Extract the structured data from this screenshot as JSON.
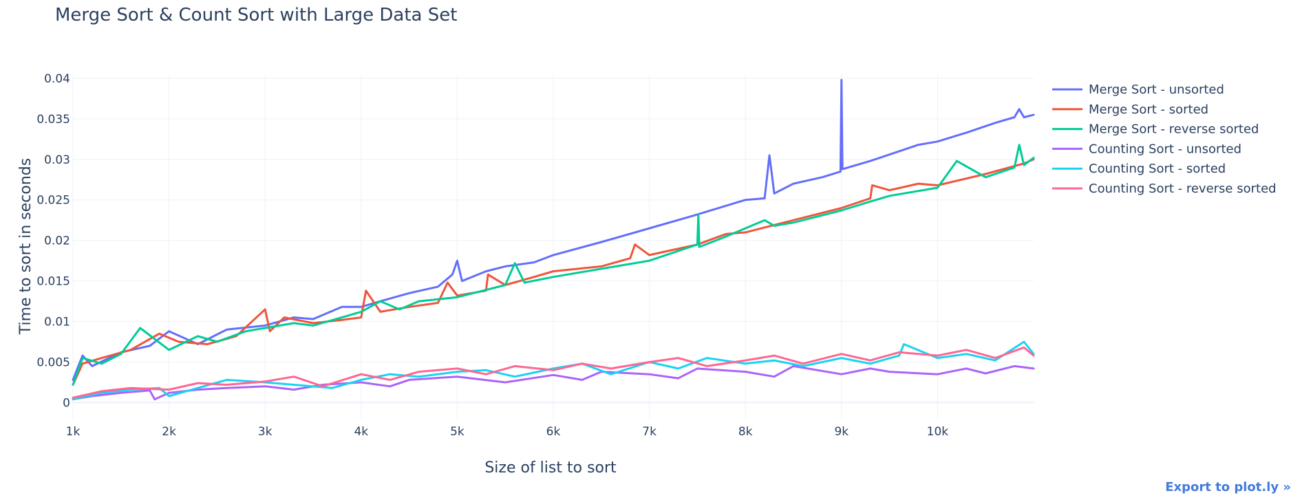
{
  "export_link": "Export to plot.ly »",
  "chart_data": {
    "type": "line",
    "title": "Merge Sort & Count Sort with Large Data Set",
    "xlabel": "Size of list to sort",
    "ylabel": "Time to sort in seconds",
    "xlim": [
      1000,
      11000
    ],
    "ylim": [
      -0.002,
      0.0405
    ],
    "xticks": [
      1000,
      2000,
      3000,
      4000,
      5000,
      6000,
      7000,
      8000,
      9000,
      10000
    ],
    "xtick_labels": [
      "1k",
      "2k",
      "3k",
      "4k",
      "5k",
      "6k",
      "7k",
      "8k",
      "9k",
      "10k"
    ],
    "yticks": [
      0,
      0.005,
      0.01,
      0.015,
      0.02,
      0.025,
      0.03,
      0.035,
      0.04
    ],
    "ytick_labels": [
      "0",
      "0.005",
      "0.01",
      "0.015",
      "0.02",
      "0.025",
      "0.03",
      "0.035",
      "0.04"
    ],
    "grid": true,
    "legend_position": "right",
    "series": [
      {
        "name": "Merge Sort - unsorted",
        "color": "#636efa",
        "x": [
          1000,
          1100,
          1200,
          1500,
          1800,
          2000,
          2300,
          2600,
          3000,
          3300,
          3500,
          3800,
          4000,
          4200,
          4500,
          4800,
          4950,
          5000,
          5050,
          5300,
          5500,
          5800,
          6000,
          6500,
          7000,
          7500,
          8000,
          8200,
          8250,
          8300,
          8500,
          8800,
          8990,
          9000,
          9010,
          9300,
          9500,
          9800,
          10000,
          10300,
          10600,
          10800,
          10850,
          10900,
          11000
        ],
        "y": [
          0.0028,
          0.0058,
          0.0045,
          0.0062,
          0.007,
          0.0088,
          0.0072,
          0.009,
          0.0095,
          0.0105,
          0.0103,
          0.0118,
          0.0118,
          0.0125,
          0.0135,
          0.0143,
          0.0158,
          0.0175,
          0.015,
          0.0162,
          0.0168,
          0.0173,
          0.0182,
          0.0198,
          0.0215,
          0.0232,
          0.025,
          0.0252,
          0.0305,
          0.0258,
          0.027,
          0.0278,
          0.0285,
          0.0398,
          0.0288,
          0.0298,
          0.0306,
          0.0318,
          0.0322,
          0.0333,
          0.0345,
          0.0352,
          0.0362,
          0.0352,
          0.0355
        ]
      },
      {
        "name": "Merge Sort - sorted",
        "color": "#ef553b",
        "x": [
          1000,
          1100,
          1300,
          1600,
          1900,
          2100,
          2400,
          2700,
          3000,
          3050,
          3200,
          3500,
          3800,
          4000,
          4050,
          4200,
          4500,
          4800,
          4900,
          5000,
          5300,
          5320,
          5500,
          5800,
          6000,
          6500,
          6800,
          6850,
          7000,
          7500,
          7800,
          8000,
          8500,
          9000,
          9300,
          9320,
          9500,
          9800,
          10000,
          10500,
          10900,
          11000
        ],
        "y": [
          0.0022,
          0.0048,
          0.0055,
          0.0065,
          0.0085,
          0.0075,
          0.0072,
          0.0082,
          0.0115,
          0.0088,
          0.0105,
          0.0098,
          0.0102,
          0.0105,
          0.0138,
          0.0112,
          0.0118,
          0.0123,
          0.0148,
          0.0132,
          0.0138,
          0.0158,
          0.0145,
          0.0155,
          0.0162,
          0.0168,
          0.0178,
          0.0195,
          0.0182,
          0.0195,
          0.0208,
          0.021,
          0.0225,
          0.024,
          0.0252,
          0.0268,
          0.0262,
          0.027,
          0.0268,
          0.0282,
          0.0295,
          0.03
        ]
      },
      {
        "name": "Merge Sort - reverse sorted",
        "color": "#00cc96",
        "x": [
          1000,
          1100,
          1300,
          1500,
          1700,
          2000,
          2300,
          2500,
          2800,
          3000,
          3300,
          3500,
          3800,
          4000,
          4200,
          4400,
          4600,
          5000,
          5500,
          5600,
          5700,
          6000,
          6500,
          7000,
          7500,
          7510,
          7520,
          7800,
          8000,
          8200,
          8300,
          8500,
          9000,
          9300,
          9500,
          10000,
          10200,
          10500,
          10800,
          10850,
          10900,
          11000
        ],
        "y": [
          0.0022,
          0.0055,
          0.0048,
          0.006,
          0.0092,
          0.0065,
          0.0082,
          0.0075,
          0.0088,
          0.0092,
          0.0098,
          0.0095,
          0.0105,
          0.0112,
          0.0125,
          0.0115,
          0.0125,
          0.013,
          0.0145,
          0.0172,
          0.0148,
          0.0155,
          0.0165,
          0.0175,
          0.0195,
          0.0232,
          0.0192,
          0.0205,
          0.0215,
          0.0225,
          0.0218,
          0.0222,
          0.0237,
          0.0248,
          0.0255,
          0.0265,
          0.0298,
          0.0278,
          0.029,
          0.0318,
          0.0293,
          0.0302
        ]
      },
      {
        "name": "Counting Sort - unsorted",
        "color": "#ab63fa",
        "x": [
          1000,
          1200,
          1500,
          1800,
          1850,
          2000,
          2300,
          2600,
          3000,
          3300,
          3600,
          4000,
          4300,
          4500,
          5000,
          5500,
          6000,
          6300,
          6500,
          7000,
          7300,
          7500,
          8000,
          8300,
          8500,
          9000,
          9300,
          9500,
          10000,
          10300,
          10500,
          10800,
          11000
        ],
        "y": [
          0.0004,
          0.0008,
          0.0012,
          0.0015,
          0.0004,
          0.0012,
          0.0016,
          0.0018,
          0.002,
          0.0016,
          0.0022,
          0.0025,
          0.002,
          0.0028,
          0.0032,
          0.0025,
          0.0034,
          0.0028,
          0.0038,
          0.0035,
          0.003,
          0.0042,
          0.0038,
          0.0032,
          0.0045,
          0.0035,
          0.0042,
          0.0038,
          0.0035,
          0.0042,
          0.0036,
          0.0045,
          0.0042
        ]
      },
      {
        "name": "Counting Sort - sorted",
        "color": "#19d3f3",
        "x": [
          1000,
          1300,
          1600,
          1900,
          2000,
          2300,
          2600,
          3000,
          3300,
          3700,
          4000,
          4300,
          4600,
          5000,
          5300,
          5600,
          6000,
          6300,
          6600,
          7000,
          7300,
          7600,
          8000,
          8300,
          8600,
          9000,
          9300,
          9600,
          9650,
          10000,
          10300,
          10600,
          10900,
          11000
        ],
        "y": [
          0.0004,
          0.0012,
          0.0016,
          0.0018,
          0.0008,
          0.0018,
          0.0028,
          0.0025,
          0.0022,
          0.0018,
          0.0028,
          0.0035,
          0.0032,
          0.0038,
          0.004,
          0.0032,
          0.0042,
          0.0048,
          0.0035,
          0.005,
          0.0042,
          0.0055,
          0.0048,
          0.0052,
          0.0045,
          0.0055,
          0.0048,
          0.0058,
          0.0072,
          0.0055,
          0.006,
          0.0052,
          0.0075,
          0.006
        ]
      },
      {
        "name": "Counting Sort - reverse sorted",
        "color": "#ff6692",
        "x": [
          1000,
          1300,
          1600,
          2000,
          2300,
          2600,
          3000,
          3300,
          3600,
          4000,
          4300,
          4600,
          5000,
          5300,
          5600,
          6000,
          6300,
          6600,
          7000,
          7300,
          7600,
          8000,
          8300,
          8600,
          9000,
          9300,
          9600,
          10000,
          10300,
          10600,
          10900,
          11000
        ],
        "y": [
          0.0006,
          0.0014,
          0.0018,
          0.0016,
          0.0024,
          0.0022,
          0.0026,
          0.0032,
          0.002,
          0.0035,
          0.0028,
          0.0038,
          0.0042,
          0.0035,
          0.0045,
          0.004,
          0.0048,
          0.0042,
          0.005,
          0.0055,
          0.0045,
          0.0052,
          0.0058,
          0.0048,
          0.006,
          0.0052,
          0.0062,
          0.0058,
          0.0065,
          0.0055,
          0.0068,
          0.0058
        ]
      }
    ]
  }
}
